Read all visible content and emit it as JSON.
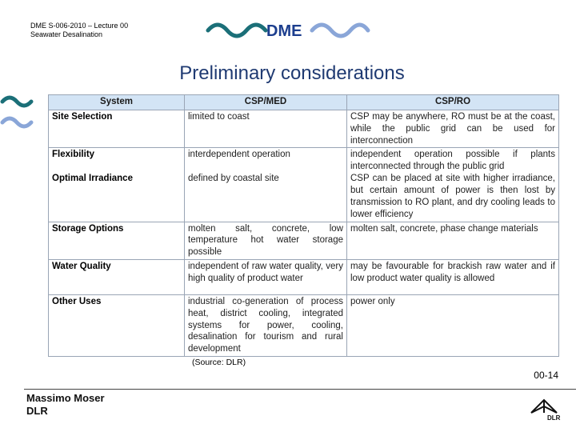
{
  "header": {
    "course": "DME S-006-2010 – Lecture 00",
    "subtitle": "Seawater Desalination",
    "logo": "DME"
  },
  "title": "Preliminary considerations",
  "table": {
    "columns": [
      "System",
      "CSP/MED",
      "CSP/RO"
    ],
    "rows": [
      [
        "Site Selection",
        "limited to coast",
        "CSP may be anywhere, RO must be at the coast, while the public grid can be used for interconnection"
      ],
      [
        [
          "Flexibility",
          "Optimal Irradiance"
        ],
        [
          "interdependent operation",
          "defined by coastal site"
        ],
        [
          "independent operation possible if plants interconnected through the public grid",
          "CSP can be placed at site with higher irradiance, but certain amount of power is then lost by transmission to RO plant, and dry cooling leads to lower efficiency"
        ]
      ],
      [
        "Storage Options",
        "molten salt, concrete, low temperature hot water storage possible",
        "molten salt, concrete, phase change materials"
      ],
      [
        "Water Quality",
        "independent of raw water quality, very high quality of product water",
        "may be favourable for brackish raw water and if low product water quality is allowed"
      ],
      [
        "Other Uses",
        "industrial co-generation of process heat, district cooling, integrated systems for power, cooling, desalination for tourism and rural development",
        "power only"
      ]
    ]
  },
  "source": "(Source: DLR)",
  "page_number": "00-14",
  "footer": {
    "author": "Massimo Moser",
    "org": "DLR",
    "logo": "DLR"
  }
}
